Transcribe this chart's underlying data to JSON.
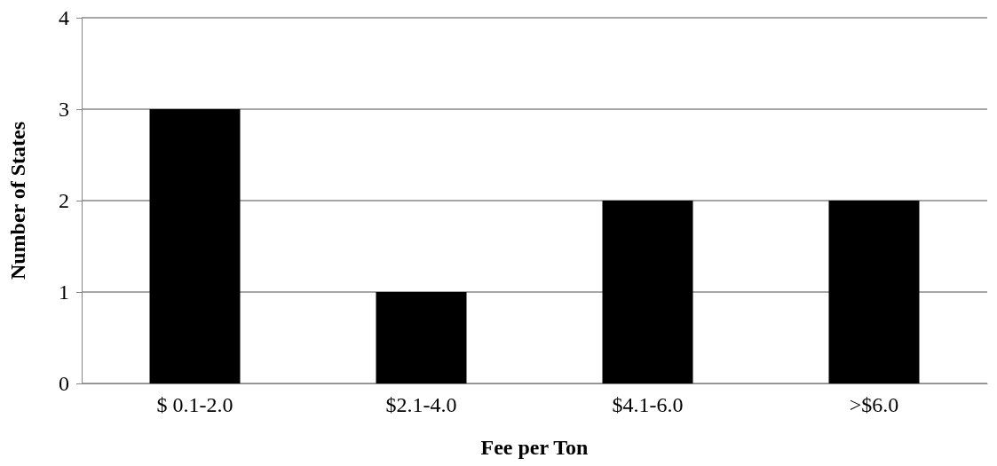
{
  "chart_data": {
    "type": "bar",
    "xlabel": "Fee per Ton",
    "ylabel": "Number of States",
    "categories": [
      "$ 0.1-2.0",
      "$2.1-4.0",
      "$4.1-6.0",
      ">$6.0"
    ],
    "values": [
      3,
      1,
      2,
      2
    ],
    "color": "#000000",
    "ylim": [
      0,
      4
    ],
    "yticks": [
      0,
      1,
      2,
      3,
      4
    ],
    "grid": "y"
  }
}
